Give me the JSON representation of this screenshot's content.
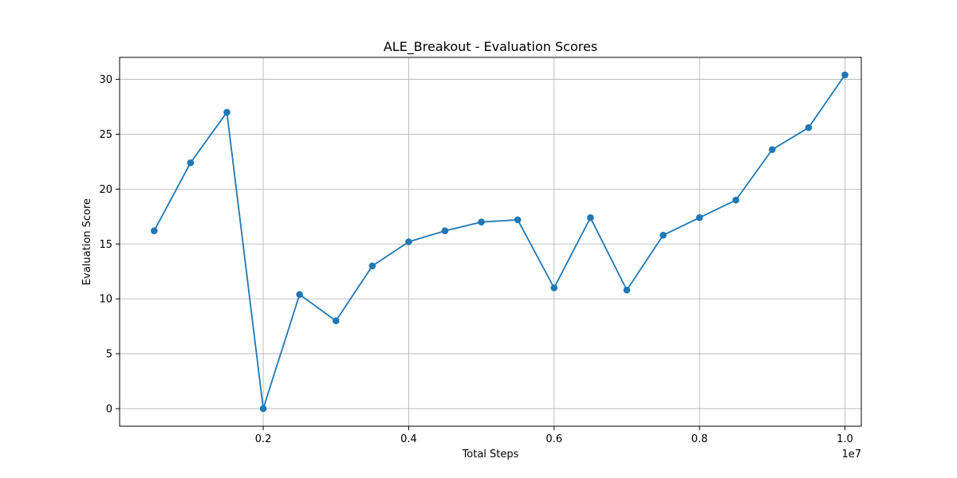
{
  "chart_data": {
    "type": "line",
    "title": "ALE_Breakout - Evaluation Scores",
    "xlabel": "Total Steps",
    "ylabel": "Evaluation Score",
    "x_offset_label": "1e7",
    "xlim": [
      0.0025,
      1.0225
    ],
    "ylim": [
      -1.6,
      32.0
    ],
    "x_ticks": [
      0.2,
      0.4,
      0.6,
      0.8,
      1.0
    ],
    "x_tick_labels": [
      "0.2",
      "0.4",
      "0.6",
      "0.8",
      "1.0"
    ],
    "y_ticks": [
      0,
      5,
      10,
      15,
      20,
      25,
      30
    ],
    "y_tick_labels": [
      "0",
      "5",
      "10",
      "15",
      "20",
      "25",
      "30"
    ],
    "grid": true,
    "line_color": "#1f77b4",
    "marker": "circle",
    "series": [
      {
        "x": [
          0.05,
          0.1,
          0.15,
          0.2,
          0.25,
          0.3,
          0.35,
          0.4,
          0.45,
          0.5,
          0.55,
          0.6,
          0.65,
          0.7,
          0.75,
          0.8,
          0.85,
          0.9,
          0.95,
          1.0
        ],
        "values": [
          16.2,
          22.4,
          27.0,
          0.0,
          10.4,
          8.0,
          13.0,
          15.2,
          16.2,
          17.0,
          17.2,
          11.0,
          17.4,
          10.8,
          15.8,
          17.4,
          19.0,
          23.6,
          25.6,
          30.4
        ]
      }
    ]
  }
}
